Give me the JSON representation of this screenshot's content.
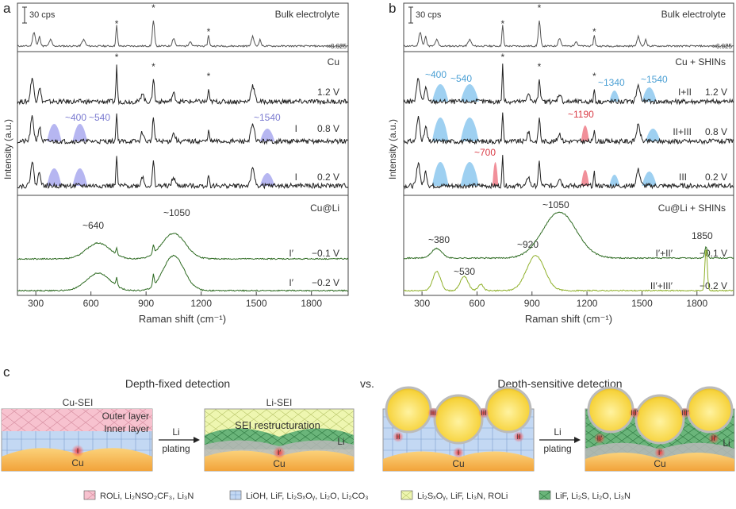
{
  "panels": {
    "a": {
      "letter": "a",
      "scale_bar": "30 cps",
      "yaxis_label": "Intensity (a.u.)",
      "xaxis_label": "Raman shift (cm⁻¹)",
      "xticks": [
        "300",
        "600",
        "900",
        "1200",
        "1500",
        "1800"
      ],
      "bulk_label": "Bulk electrolyte",
      "bulk_scale": "×0.025",
      "cu_label": "Cu",
      "culi_label": "Cu@Li",
      "traces": [
        {
          "voltage": "1.2 V",
          "state": ""
        },
        {
          "voltage": "0.8 V",
          "state": "I"
        },
        {
          "voltage": "0.2 V",
          "state": "I"
        }
      ],
      "li_traces": [
        {
          "voltage": "−0.1 V",
          "state": "I′"
        },
        {
          "voltage": "−0.2 V",
          "state": "I′"
        }
      ],
      "peaks": {
        "p400": "~400",
        "p540": "~540",
        "p1540": "~1540",
        "p640": "~640",
        "p1050": "~1050"
      },
      "asterisk": "*"
    },
    "b": {
      "letter": "b",
      "scale_bar": "30 cps",
      "yaxis_label": "Intensity (a.u.)",
      "xaxis_label": "Raman shift (cm⁻¹)",
      "xticks": [
        "300",
        "600",
        "900",
        "1200",
        "1500",
        "1800"
      ],
      "bulk_label": "Bulk electrolyte",
      "bulk_scale": "×0.025",
      "cu_label": "Cu + SHINs",
      "culi_label": "Cu@Li + SHINs",
      "traces": [
        {
          "voltage": "1.2 V",
          "state": "I+II"
        },
        {
          "voltage": "0.8 V",
          "state": "II+III"
        },
        {
          "voltage": "0.2 V",
          "state": "III"
        }
      ],
      "li_traces": [
        {
          "voltage": "−0.1 V",
          "state": "I′+II′"
        },
        {
          "voltage": "−0.2 V",
          "state": "II′+III′"
        }
      ],
      "peaks": {
        "p400": "~400",
        "p540": "~540",
        "p1340": "~1340",
        "p1540": "~1540",
        "p1190": "~1190",
        "p700": "~700",
        "p380": "~380",
        "p530": "~530",
        "p920": "~920",
        "p1050": "~1050",
        "p1850": "1850"
      },
      "asterisk": "*"
    },
    "c": {
      "letter": "c",
      "left_title": "Depth-fixed detection",
      "vs": "vs.",
      "right_title": "Depth-sensitive detection",
      "cu_sei": "Cu-SEI",
      "li_sei": "Li-SEI",
      "outer_layer": "Outer layer",
      "inner_layer": "Inner layer",
      "sei_restructuration": "SEI restructuration",
      "arrow_top": "Li",
      "arrow_bottom": "plating",
      "cu": "Cu",
      "li": "Li",
      "roman": [
        "I",
        "II",
        "III",
        "I′",
        "II′",
        "III′"
      ]
    }
  },
  "legend": [
    {
      "text": "ROLi, Li₂NSO₂CF₃, Li₃N",
      "color": "#f4b3c2"
    },
    {
      "text": "LiOH, LiF, Li₂SₓOᵧ, Li₂O, Li₂CO₃",
      "color": "#b9d4f2"
    },
    {
      "text": "Li₂SₓOᵧ, LiF, Li₃N, ROLi",
      "color": "#e5f29a"
    },
    {
      "text": "LiF, Li₂S, Li₂O,  Li₃N",
      "color": "#5aa86a"
    }
  ],
  "colors": {
    "blue_fill": "#8dc8ef",
    "purple_fill": "#a9a9ee",
    "red_fill": "#ef7c88",
    "green_dark": "#2e6b22",
    "green_light": "#8fb02a"
  }
}
